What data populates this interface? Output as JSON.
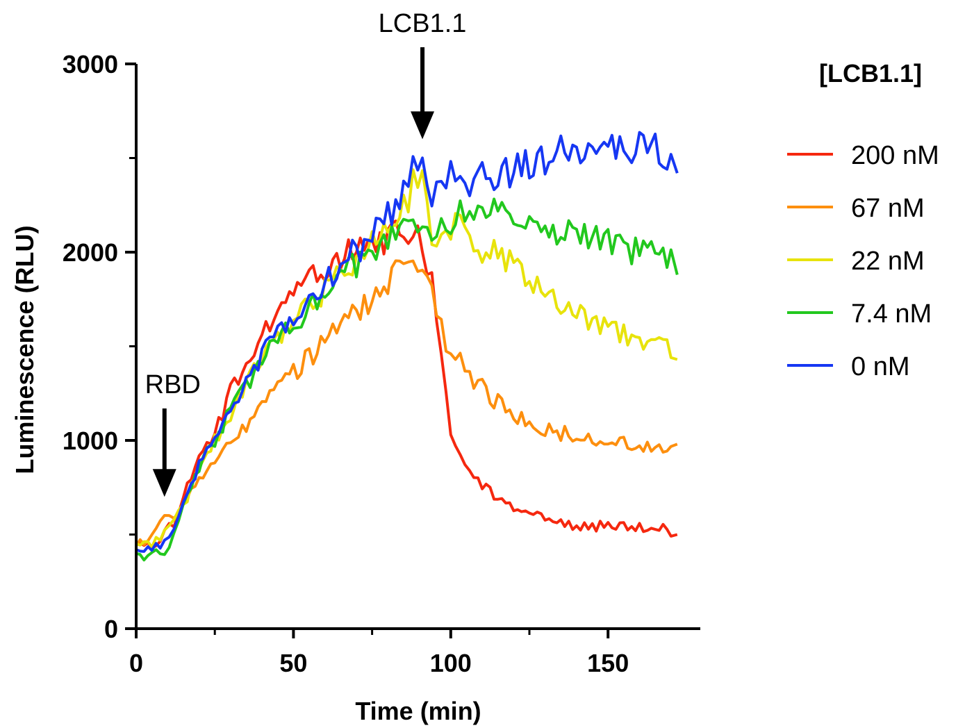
{
  "chart_data": {
    "type": "line",
    "title": "",
    "xlabel": "Time (min)",
    "ylabel": "Luminescence (RLU)",
    "xlim": [
      0,
      180
    ],
    "ylim": [
      0,
      3000
    ],
    "x_ticks": [
      0,
      50,
      100,
      150
    ],
    "y_ticks": [
      0,
      1000,
      2000,
      3000
    ],
    "grid": false,
    "legend": {
      "title": "[LCB1.1]",
      "placement": "right"
    },
    "annotations": [
      {
        "label": "RBD",
        "x": 9,
        "y": 700,
        "type": "down-arrow"
      },
      {
        "label": "LCB1.1",
        "x": 91,
        "y": 2600,
        "type": "down-arrow"
      }
    ],
    "series": [
      {
        "name": "200 nM",
        "color": "#f5280f",
        "points": [
          [
            0,
            460
          ],
          [
            5,
            430
          ],
          [
            9,
            520
          ],
          [
            12,
            560
          ],
          [
            15,
            700
          ],
          [
            20,
            900
          ],
          [
            25,
            1050
          ],
          [
            30,
            1250
          ],
          [
            35,
            1400
          ],
          [
            40,
            1550
          ],
          [
            45,
            1650
          ],
          [
            50,
            1800
          ],
          [
            55,
            1850
          ],
          [
            60,
            1900
          ],
          [
            65,
            1980
          ],
          [
            70,
            2020
          ],
          [
            75,
            2050
          ],
          [
            80,
            2080
          ],
          [
            85,
            2100
          ],
          [
            88,
            2090
          ],
          [
            91,
            2060
          ],
          [
            94,
            1850
          ],
          [
            97,
            1500
          ],
          [
            100,
            1050
          ],
          [
            103,
            950
          ],
          [
            106,
            850
          ],
          [
            110,
            760
          ],
          [
            115,
            690
          ],
          [
            120,
            640
          ],
          [
            125,
            600
          ],
          [
            130,
            580
          ],
          [
            135,
            560
          ],
          [
            140,
            550
          ],
          [
            145,
            545
          ],
          [
            150,
            540
          ],
          [
            155,
            540
          ],
          [
            160,
            535
          ],
          [
            165,
            530
          ],
          [
            170,
            520
          ],
          [
            172,
            500
          ]
        ]
      },
      {
        "name": "67 nM",
        "color": "#fd8f0e",
        "points": [
          [
            0,
            440
          ],
          [
            5,
            480
          ],
          [
            9,
            600
          ],
          [
            12,
            580
          ],
          [
            15,
            680
          ],
          [
            20,
            780
          ],
          [
            25,
            900
          ],
          [
            30,
            1000
          ],
          [
            35,
            1080
          ],
          [
            40,
            1180
          ],
          [
            45,
            1280
          ],
          [
            50,
            1360
          ],
          [
            55,
            1440
          ],
          [
            60,
            1520
          ],
          [
            65,
            1600
          ],
          [
            70,
            1680
          ],
          [
            75,
            1760
          ],
          [
            80,
            1840
          ],
          [
            85,
            1920
          ],
          [
            88,
            1960
          ],
          [
            91,
            1940
          ],
          [
            94,
            1800
          ],
          [
            97,
            1600
          ],
          [
            100,
            1450
          ],
          [
            103,
            1420
          ],
          [
            106,
            1350
          ],
          [
            110,
            1280
          ],
          [
            115,
            1200
          ],
          [
            120,
            1130
          ],
          [
            125,
            1090
          ],
          [
            130,
            1060
          ],
          [
            135,
            1040
          ],
          [
            140,
            1020
          ],
          [
            145,
            1010
          ],
          [
            150,
            990
          ],
          [
            155,
            980
          ],
          [
            160,
            970
          ],
          [
            165,
            960
          ],
          [
            170,
            950
          ],
          [
            172,
            980
          ]
        ]
      },
      {
        "name": "22 nM",
        "color": "#e8e30c",
        "points": [
          [
            0,
            450
          ],
          [
            5,
            430
          ],
          [
            9,
            520
          ],
          [
            12,
            560
          ],
          [
            15,
            650
          ],
          [
            20,
            850
          ],
          [
            25,
            1000
          ],
          [
            30,
            1150
          ],
          [
            35,
            1300
          ],
          [
            40,
            1420
          ],
          [
            45,
            1520
          ],
          [
            50,
            1620
          ],
          [
            55,
            1720
          ],
          [
            60,
            1800
          ],
          [
            65,
            1880
          ],
          [
            70,
            1960
          ],
          [
            75,
            2040
          ],
          [
            80,
            2150
          ],
          [
            85,
            2250
          ],
          [
            88,
            2350
          ],
          [
            91,
            2380
          ],
          [
            94,
            2050
          ],
          [
            97,
            2100
          ],
          [
            100,
            2150
          ],
          [
            103,
            2130
          ],
          [
            106,
            2080
          ],
          [
            110,
            2020
          ],
          [
            115,
            1980
          ],
          [
            120,
            1920
          ],
          [
            125,
            1830
          ],
          [
            130,
            1780
          ],
          [
            135,
            1720
          ],
          [
            140,
            1680
          ],
          [
            145,
            1640
          ],
          [
            150,
            1600
          ],
          [
            155,
            1560
          ],
          [
            160,
            1520
          ],
          [
            165,
            1490
          ],
          [
            170,
            1480
          ],
          [
            172,
            1430
          ]
        ]
      },
      {
        "name": "7.4 nM",
        "color": "#22c81e",
        "points": [
          [
            0,
            400
          ],
          [
            5,
            380
          ],
          [
            9,
            420
          ],
          [
            12,
            500
          ],
          [
            15,
            680
          ],
          [
            20,
            860
          ],
          [
            25,
            1000
          ],
          [
            30,
            1150
          ],
          [
            35,
            1300
          ],
          [
            40,
            1420
          ],
          [
            45,
            1530
          ],
          [
            50,
            1620
          ],
          [
            55,
            1700
          ],
          [
            60,
            1780
          ],
          [
            65,
            1860
          ],
          [
            70,
            1940
          ],
          [
            75,
            2020
          ],
          [
            80,
            2100
          ],
          [
            85,
            2160
          ],
          [
            88,
            2180
          ],
          [
            91,
            2150
          ],
          [
            94,
            2140
          ],
          [
            97,
            2160
          ],
          [
            100,
            2180
          ],
          [
            103,
            2200
          ],
          [
            106,
            2220
          ],
          [
            110,
            2240
          ],
          [
            115,
            2220
          ],
          [
            120,
            2180
          ],
          [
            125,
            2150
          ],
          [
            130,
            2120
          ],
          [
            135,
            2100
          ],
          [
            140,
            2080
          ],
          [
            145,
            2060
          ],
          [
            150,
            2040
          ],
          [
            155,
            2020
          ],
          [
            160,
            2000
          ],
          [
            165,
            1980
          ],
          [
            170,
            1960
          ],
          [
            172,
            1880
          ]
        ]
      },
      {
        "name": "0 nM",
        "color": "#1637f3",
        "points": [
          [
            0,
            420
          ],
          [
            5,
            430
          ],
          [
            9,
            470
          ],
          [
            12,
            520
          ],
          [
            15,
            680
          ],
          [
            20,
            870
          ],
          [
            25,
            1020
          ],
          [
            30,
            1180
          ],
          [
            35,
            1320
          ],
          [
            40,
            1450
          ],
          [
            45,
            1560
          ],
          [
            50,
            1660
          ],
          [
            55,
            1760
          ],
          [
            60,
            1850
          ],
          [
            65,
            1930
          ],
          [
            70,
            2010
          ],
          [
            75,
            2100
          ],
          [
            80,
            2200
          ],
          [
            85,
            2320
          ],
          [
            88,
            2450
          ],
          [
            91,
            2500
          ],
          [
            94,
            2300
          ],
          [
            97,
            2380
          ],
          [
            100,
            2420
          ],
          [
            103,
            2360
          ],
          [
            106,
            2380
          ],
          [
            110,
            2400
          ],
          [
            115,
            2420
          ],
          [
            120,
            2440
          ],
          [
            125,
            2460
          ],
          [
            130,
            2500
          ],
          [
            135,
            2540
          ],
          [
            140,
            2560
          ],
          [
            145,
            2560
          ],
          [
            150,
            2540
          ],
          [
            155,
            2540
          ],
          [
            160,
            2540
          ],
          [
            165,
            2540
          ],
          [
            170,
            2480
          ],
          [
            172,
            2420
          ]
        ]
      }
    ]
  }
}
